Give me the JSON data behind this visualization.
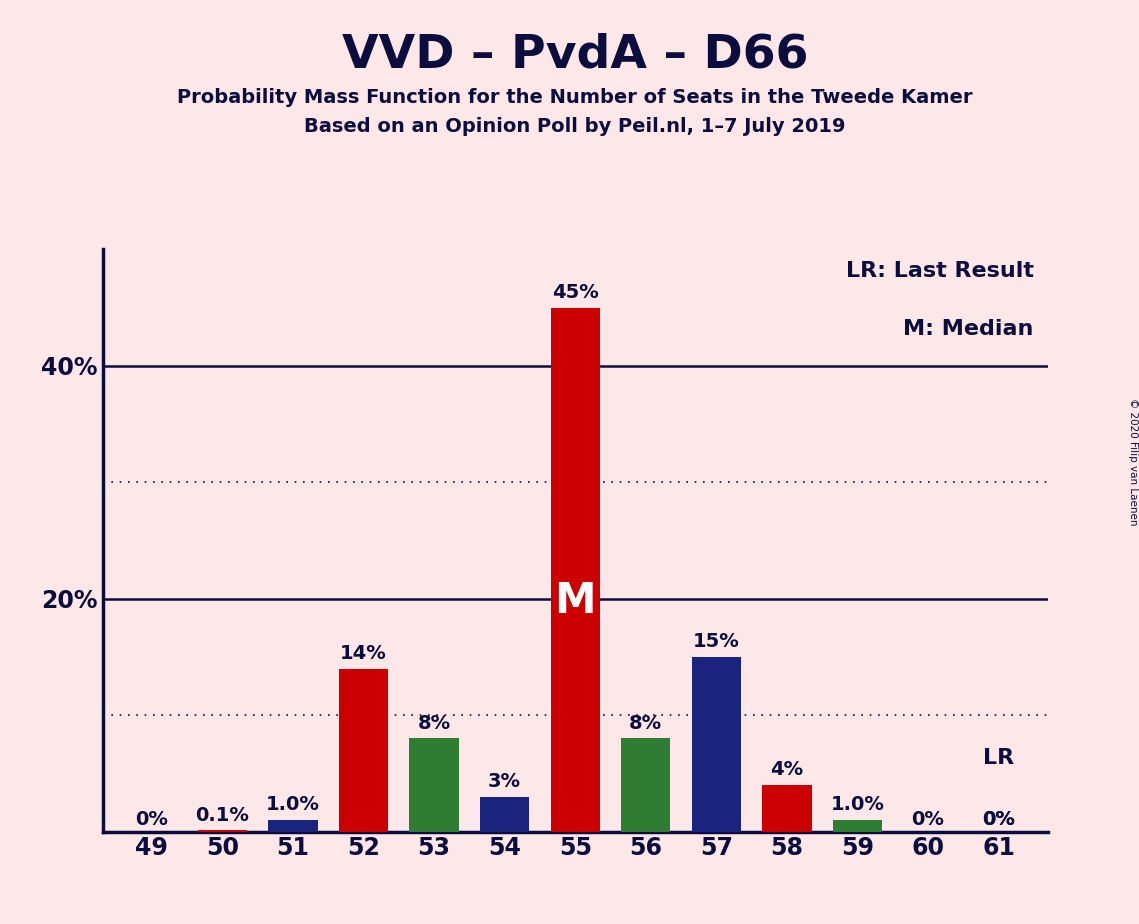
{
  "title": "VVD – PvdA – D66",
  "subtitle1": "Probability Mass Function for the Number of Seats in the Tweede Kamer",
  "subtitle2": "Based on an Opinion Poll by Peil.nl, 1–7 July 2019",
  "copyright": "© 2020 Filip van Laenen",
  "legend_lr": "LR: Last Result",
  "legend_m": "M: Median",
  "background_color": "#fce8e8",
  "seats": [
    49,
    50,
    51,
    52,
    53,
    54,
    55,
    56,
    57,
    58,
    59,
    60,
    61
  ],
  "bars": [
    {
      "seat": 49,
      "value": 0.0,
      "color": "#cc0000",
      "label": "0%"
    },
    {
      "seat": 50,
      "value": 0.1,
      "color": "#cc0000",
      "label": "0.1%"
    },
    {
      "seat": 51,
      "value": 1.0,
      "color": "#1a237e",
      "label": "1.0%"
    },
    {
      "seat": 52,
      "value": 14.0,
      "color": "#cc0000",
      "label": "14%"
    },
    {
      "seat": 53,
      "value": 8.0,
      "color": "#2e7d32",
      "label": "8%"
    },
    {
      "seat": 54,
      "value": 3.0,
      "color": "#1a237e",
      "label": "3%"
    },
    {
      "seat": 55,
      "value": 45.0,
      "color": "#cc0000",
      "label": "45%"
    },
    {
      "seat": 56,
      "value": 8.0,
      "color": "#2e7d32",
      "label": "8%"
    },
    {
      "seat": 57,
      "value": 15.0,
      "color": "#1a237e",
      "label": "15%"
    },
    {
      "seat": 58,
      "value": 4.0,
      "color": "#cc0000",
      "label": "4%"
    },
    {
      "seat": 59,
      "value": 1.0,
      "color": "#2e7d32",
      "label": "1.0%"
    },
    {
      "seat": 60,
      "value": 0.0,
      "color": "#cc0000",
      "label": "0%"
    },
    {
      "seat": 61,
      "value": 0.0,
      "color": "#cc0000",
      "label": "0%"
    }
  ],
  "median_seat": 55,
  "median_label": "M",
  "ylim_max": 50,
  "solid_lines": [
    20,
    40
  ],
  "dotted_lines": [
    10,
    30
  ],
  "ytick_positions": [
    20,
    40
  ],
  "ytick_labels": [
    "20%",
    "40%"
  ],
  "bar_width": 0.7,
  "axis_color": "#0d0d3d",
  "text_color": "#0d0d3d",
  "title_fontsize": 34,
  "subtitle_fontsize": 14,
  "tick_fontsize": 17,
  "label_fontsize": 14,
  "legend_fontsize": 16
}
